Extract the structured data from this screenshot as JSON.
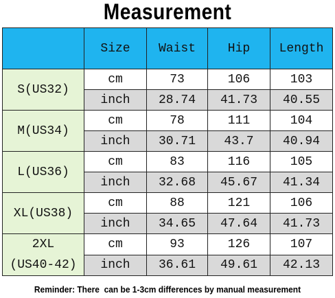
{
  "header": {
    "title": "Measurement"
  },
  "table": {
    "columns": [
      "Size",
      "Waist",
      "Hip",
      "Length"
    ],
    "groups": [
      {
        "label": [
          "S(US32)"
        ],
        "rows": [
          [
            "cm",
            "73",
            "106",
            "103"
          ],
          [
            "inch",
            "28.74",
            "41.73",
            "40.55"
          ]
        ]
      },
      {
        "label": [
          "M(US34)"
        ],
        "rows": [
          [
            "cm",
            "78",
            "111",
            "104"
          ],
          [
            "inch",
            "30.71",
            "43.7",
            "40.94"
          ]
        ]
      },
      {
        "label": [
          "L(US36)"
        ],
        "rows": [
          [
            "cm",
            "83",
            "116",
            "105"
          ],
          [
            "inch",
            "32.68",
            "45.67",
            "41.34"
          ]
        ]
      },
      {
        "label": [
          "XL(US38)"
        ],
        "rows": [
          [
            "cm",
            "88",
            "121",
            "106"
          ],
          [
            "inch",
            "34.65",
            "47.64",
            "41.73"
          ]
        ]
      },
      {
        "label": [
          "2XL",
          "(US40-42)"
        ],
        "rows": [
          [
            "cm",
            "93",
            "126",
            "107"
          ],
          [
            "inch",
            "36.61",
            "49.61",
            "42.13"
          ]
        ]
      }
    ]
  },
  "footer": {
    "note": "Reminder: There  can be 1-3cm differences by manual measurement"
  }
}
